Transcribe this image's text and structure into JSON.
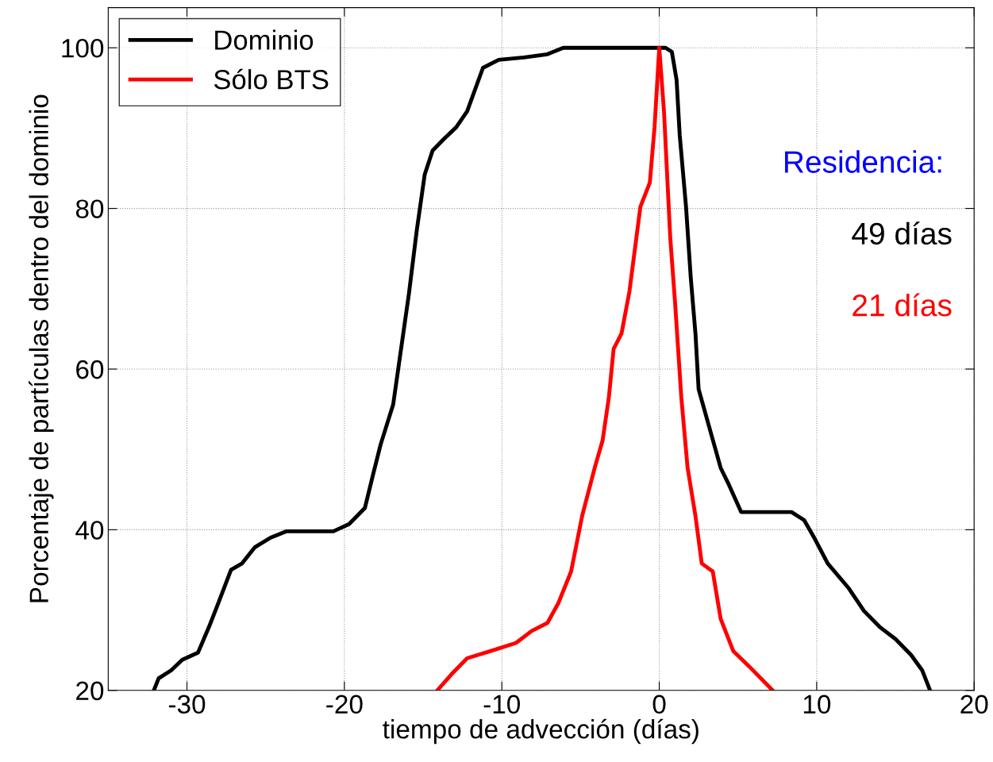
{
  "chart_data": {
    "type": "line",
    "xlabel": "tiempo de advección (días)",
    "ylabel": "Porcentaje de partículas dentro del dominio",
    "xlim": [
      -35,
      20
    ],
    "ylim": [
      20,
      105
    ],
    "xticks": [
      -30,
      -20,
      -10,
      0,
      10,
      20
    ],
    "yticks": [
      20,
      40,
      60,
      80,
      100
    ],
    "grid": true,
    "legend": "top left",
    "marker": "none",
    "line_style": "solid",
    "annotations": [
      "Residencia:",
      "49 días",
      "21 días"
    ],
    "series": [
      {
        "name": "Dominio",
        "color": "#000000",
        "x": [
          -32.1,
          -31.8,
          -31,
          -30.3,
          -29.3,
          -28.6,
          -28,
          -27.2,
          -26.5,
          -25.7,
          -24.7,
          -23.7,
          -20.7,
          -19.7,
          -18.7,
          -18.2,
          -17.7,
          -16.9,
          -16.4,
          -15.9,
          -15.4,
          -14.9,
          -14.4,
          -13.7,
          -12.9,
          -12.2,
          -11.2,
          -10.2,
          -8.6,
          -7.1,
          -6.1,
          0.4,
          0.8,
          1.1,
          1.3,
          1.7,
          2,
          2.3,
          2.5,
          3.2,
          3.9,
          4.4,
          5.2,
          8.4,
          9.2,
          9.9,
          10.7,
          12,
          13,
          14,
          15,
          16,
          16.7,
          17.2
        ],
        "values": [
          20,
          21.5,
          22.5,
          23.8,
          24.7,
          27.9,
          30.9,
          35,
          35.8,
          37.8,
          39,
          39.8,
          39.8,
          40.7,
          42.7,
          46.7,
          50.6,
          55.6,
          62.5,
          69.4,
          77.3,
          84.2,
          87.2,
          88.6,
          90.1,
          92.1,
          97.5,
          98.5,
          98.8,
          99.2,
          100,
          100,
          99.5,
          96,
          89.1,
          80.2,
          71.4,
          64.4,
          57.5,
          52.6,
          47.7,
          45.7,
          42.2,
          42.2,
          41.2,
          38.8,
          35.8,
          32.8,
          29.9,
          27.9,
          26.4,
          24.4,
          22.5,
          20
        ]
      },
      {
        "name": "Sólo BTS",
        "color": "#ff0000",
        "x": [
          -14.1,
          -13.2,
          -12.2,
          -10.7,
          -9.1,
          -8.1,
          -7.1,
          -6.4,
          -5.6,
          -4.9,
          -4.1,
          -3.6,
          -3.2,
          -2.9,
          -2.4,
          -1.9,
          -1.2,
          -0.6,
          -0.3,
          0,
          0.3,
          0.7,
          1,
          1.4,
          1.8,
          2.3,
          2.7,
          3.4,
          3.9,
          4.7,
          5.7,
          7.2
        ],
        "values": [
          20,
          22,
          24,
          24.9,
          25.9,
          27.4,
          28.4,
          30.9,
          34.8,
          41.7,
          47.7,
          51.1,
          56.5,
          62.5,
          64.4,
          69.6,
          80.2,
          83.2,
          90.1,
          100,
          92.1,
          76.3,
          68.4,
          56.5,
          47.7,
          41.7,
          35.8,
          34.8,
          28.9,
          24.9,
          23,
          20
        ]
      }
    ]
  }
}
